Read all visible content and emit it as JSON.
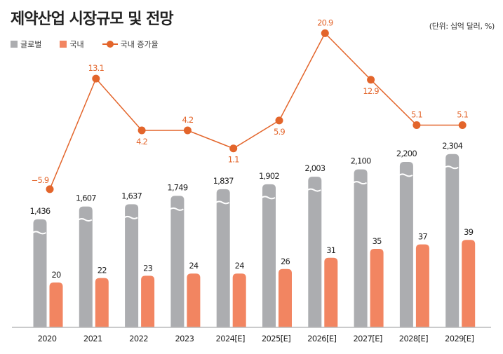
{
  "header": {
    "title": "제약산업 시장규모 및 전망",
    "unit_note": "(단위: 십억 달러, %)"
  },
  "legend": {
    "items": [
      {
        "label": "글로벌",
        "type": "bar",
        "icon": "square-swatch-icon"
      },
      {
        "label": "국내",
        "type": "bar",
        "icon": "square-swatch-icon"
      },
      {
        "label": "국내 증가율",
        "type": "line",
        "icon": "line-dot-swatch-icon"
      }
    ]
  },
  "colors": {
    "global": "#acadb0",
    "domestic": "#f28561",
    "growth_line": "#e3652b",
    "axis": "#b9babc",
    "text": "#222222"
  },
  "chart_data": {
    "type": "bar",
    "title": "제약산업 시장규모 및 전망",
    "subtitle": "(단위: 십억 달러, %)",
    "xlabel": "",
    "ylabel": "",
    "axis_break": "global bars use a broken (wavy) axis",
    "grid": false,
    "legend_position": "top-left",
    "categories": [
      "2020",
      "2021",
      "2022",
      "2023",
      "2024[E]",
      "2025[E]",
      "2026[E]",
      "2027[E]",
      "2028[E]",
      "2029[E]"
    ],
    "series": [
      {
        "name": "글로벌",
        "type": "bar",
        "values": [
          1436,
          1607,
          1637,
          1749,
          1837,
          1902,
          2003,
          2100,
          2200,
          2304
        ],
        "labels": [
          "1,436",
          "1,607",
          "1,637",
          "1,749",
          "1,837",
          "1,902",
          "2,003",
          "2,100",
          "2,200",
          "2,304"
        ]
      },
      {
        "name": "국내",
        "type": "bar",
        "values": [
          20,
          22,
          23,
          24,
          24,
          26,
          31,
          35,
          37,
          39
        ],
        "labels": [
          "20",
          "22",
          "23",
          "24",
          "24",
          "26",
          "31",
          "35",
          "37",
          "39"
        ]
      },
      {
        "name": "국내 증가율",
        "type": "line",
        "values": [
          -5.9,
          13.1,
          4.2,
          4.2,
          1.1,
          5.9,
          20.9,
          12.9,
          5.1,
          5.1
        ],
        "labels": [
          "-5.9",
          "13.1",
          "4.2",
          "4.2",
          "1.1",
          "5.9",
          "20.9",
          "12.9",
          "5.1",
          "5.1"
        ],
        "label_positions": [
          "left",
          "above",
          "below",
          "above",
          "below",
          "below",
          "above",
          "below",
          "above",
          "above"
        ]
      }
    ]
  }
}
